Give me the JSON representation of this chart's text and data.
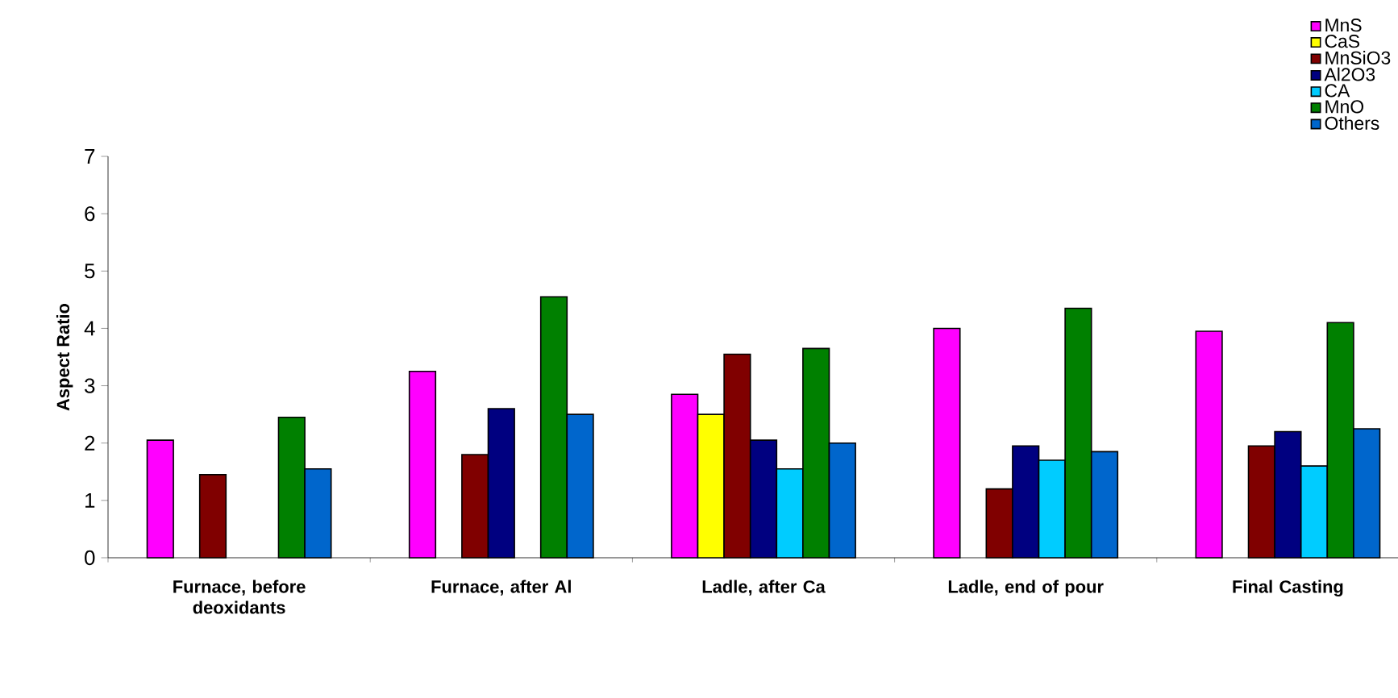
{
  "chart_data": {
    "type": "bar",
    "categories": [
      "Furnace, before deoxidants",
      "Furnace, after Al",
      "Ladle, after Ca",
      "Ladle, end of pour",
      "Final Casting"
    ],
    "ylabel": "Aspect Ratio",
    "ylim": [
      0,
      7
    ],
    "yticks": [
      0,
      1,
      2,
      3,
      4,
      5,
      6,
      7
    ],
    "legend": "top right",
    "series": [
      {
        "name": "MnS",
        "color": "#ff00ff",
        "values": [
          2.05,
          3.25,
          2.85,
          4.0,
          3.95
        ]
      },
      {
        "name": "CaS",
        "color": "#ffff00",
        "values": [
          null,
          null,
          2.5,
          null,
          null
        ]
      },
      {
        "name": "MnSiO3",
        "color": "#800000",
        "values": [
          1.45,
          1.8,
          3.55,
          1.2,
          1.95
        ]
      },
      {
        "name": "Al2O3",
        "color": "#000080",
        "values": [
          null,
          2.6,
          2.05,
          1.95,
          2.2
        ]
      },
      {
        "name": "CA",
        "color": "#00ccff",
        "values": [
          null,
          null,
          1.55,
          1.7,
          1.6
        ]
      },
      {
        "name": "MnO",
        "color": "#008000",
        "values": [
          2.45,
          4.55,
          3.65,
          4.35,
          4.1
        ]
      },
      {
        "name": "Others",
        "color": "#0066cc",
        "values": [
          1.55,
          2.5,
          2.0,
          1.85,
          2.25
        ]
      }
    ]
  }
}
